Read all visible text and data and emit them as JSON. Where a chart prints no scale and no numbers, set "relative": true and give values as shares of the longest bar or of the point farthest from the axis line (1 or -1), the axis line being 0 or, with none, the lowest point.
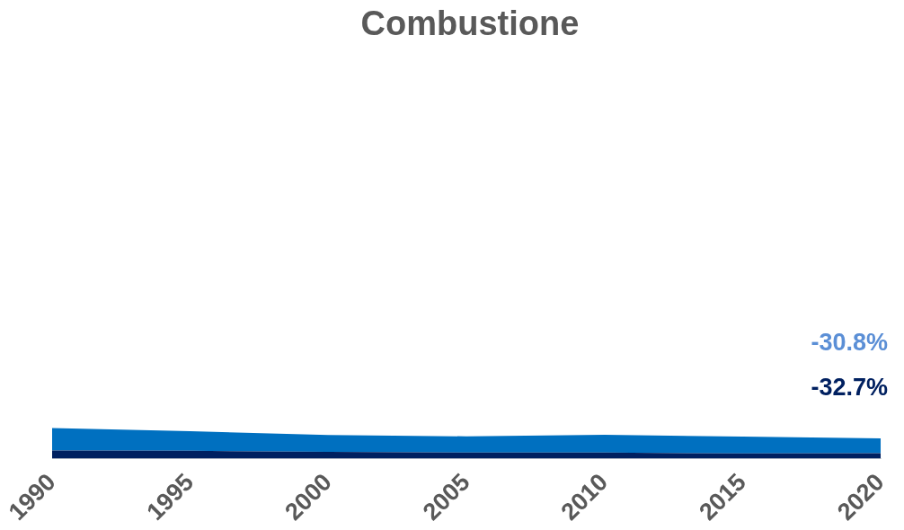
{
  "chart_data": {
    "type": "area",
    "title": "Combustione",
    "categories": [
      "1990",
      "1995",
      "2000",
      "2005",
      "2010",
      "2015",
      "2020"
    ],
    "relative": true,
    "stacked": true,
    "tick_labels": "x",
    "series": [
      {
        "color": "#002060",
        "values": [
          0.27,
          0.26,
          0.22,
          0.2,
          0.2,
          0.17,
          0.18
        ]
      },
      {
        "color": "#0070c0",
        "values": [
          0.73,
          0.64,
          0.55,
          0.53,
          0.58,
          0.55,
          0.48
        ]
      }
    ],
    "annotations": [
      "-30.8%",
      "-32.7%"
    ]
  }
}
